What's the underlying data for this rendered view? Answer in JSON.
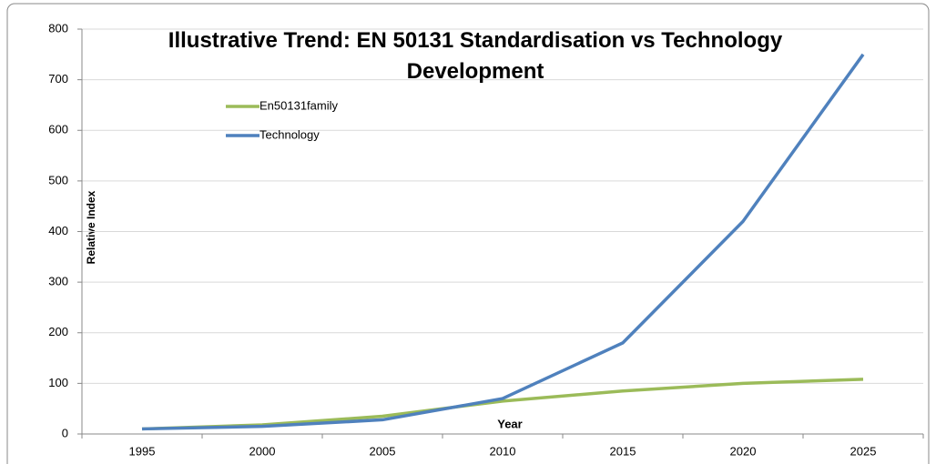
{
  "chart_data": {
    "type": "line",
    "title": "Illustrative Trend: EN 50131 Standardisation vs Technology Development",
    "x_label": "Year",
    "y_label": "Relative Index",
    "categories": [
      "1995",
      "2000",
      "2005",
      "2010",
      "2015",
      "2020",
      "2025"
    ],
    "series": [
      {
        "name": "En50131family",
        "color": "#9bbb59",
        "values": [
          10,
          18,
          35,
          65,
          85,
          100,
          108
        ]
      },
      {
        "name": "Technology",
        "color": "#4f81bd",
        "values": [
          10,
          15,
          28,
          70,
          180,
          420,
          750
        ]
      }
    ],
    "ylim": [
      0,
      800
    ],
    "yticks": [
      0,
      100,
      200,
      300,
      400,
      500,
      600,
      700,
      800
    ],
    "grid": true,
    "legend": "upper left"
  }
}
